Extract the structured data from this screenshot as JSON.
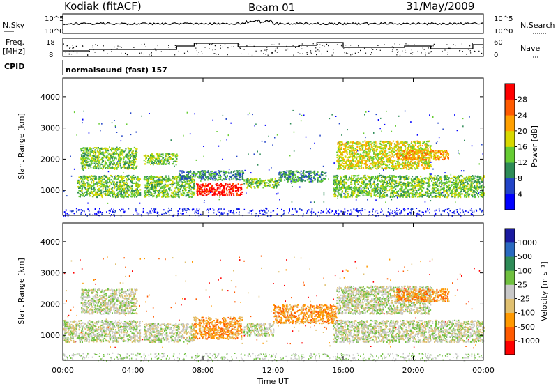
{
  "header": {
    "station": "Kodiak (fitACF)",
    "beam": "Beam 01",
    "date": "31/May/2009"
  },
  "noise_panel": {
    "left_label": "N.Sky",
    "right_label": "N.Search",
    "y_ticks_left": [
      "10^5",
      "10^0"
    ],
    "y_ticks_right": [
      "10^5",
      "10^0"
    ]
  },
  "freq_panel": {
    "left_label_line1": "Freq.",
    "left_label_line2": "[MHz]",
    "y_ticks_left": [
      "18",
      "8"
    ],
    "right_label": "Nave",
    "y_ticks_right": [
      "60",
      "0"
    ]
  },
  "cpid": {
    "label": "CPID",
    "text": "normalsound (fast) 157"
  },
  "x_axis": {
    "label": "Time UT",
    "ticks": [
      "00:00",
      "04:00",
      "08:00",
      "12:00",
      "16:00",
      "20:00",
      "00:00"
    ]
  },
  "chart_data": [
    {
      "type": "heatmap",
      "name": "power-panel",
      "ylabel": "Slant Range [km]",
      "yticks": [
        1000,
        2000,
        3000,
        4000
      ],
      "ylim": [
        200,
        4600
      ],
      "xlim_hours": [
        0,
        24
      ],
      "colorbar": {
        "label": "Power [dB]",
        "ticks": [
          "28",
          "24",
          "20",
          "16",
          "12",
          "8",
          "4"
        ],
        "colors": [
          "#0000ff",
          "#2244c8",
          "#2e8b57",
          "#66cc33",
          "#d8d800",
          "#ffa000",
          "#ff5a00",
          "#ff0000"
        ]
      },
      "regions": [
        {
          "t0": 0.8,
          "t1": 4.4,
          "r0": 800,
          "r1": 1500,
          "level": 3
        },
        {
          "t0": 1.0,
          "t1": 4.2,
          "r0": 1700,
          "r1": 2400,
          "level": 3
        },
        {
          "t0": 4.6,
          "t1": 7.5,
          "r0": 800,
          "r1": 1500,
          "level": 3
        },
        {
          "t0": 4.6,
          "t1": 6.5,
          "r0": 1850,
          "r1": 2200,
          "level": 3
        },
        {
          "t0": 6.6,
          "t1": 10.3,
          "r0": 1350,
          "r1": 1650,
          "level": 2
        },
        {
          "t0": 7.6,
          "t1": 10.2,
          "r0": 850,
          "r1": 1250,
          "level": 7
        },
        {
          "t0": 10.3,
          "t1": 12.3,
          "r0": 1100,
          "r1": 1400,
          "level": 3
        },
        {
          "t0": 12.3,
          "t1": 15.0,
          "r0": 1300,
          "r1": 1650,
          "level": 2
        },
        {
          "t0": 15.4,
          "t1": 24.0,
          "r0": 800,
          "r1": 1500,
          "level": 3
        },
        {
          "t0": 15.6,
          "t1": 21.0,
          "r0": 1700,
          "r1": 2600,
          "level": 4
        },
        {
          "t0": 19.0,
          "t1": 22.0,
          "r0": 2000,
          "r1": 2300,
          "level": 5
        }
      ]
    },
    {
      "type": "heatmap",
      "name": "velocity-panel",
      "ylabel": "Slant Range [km]",
      "yticks": [
        1000,
        2000,
        3000,
        4000
      ],
      "ylim": [
        200,
        4600
      ],
      "xlim_hours": [
        0,
        24
      ],
      "colorbar": {
        "label": "Velocity [m s⁻¹]",
        "ticks": [
          "1000",
          "500",
          "100",
          "25",
          "-25",
          "-100",
          "-500",
          "-1000"
        ],
        "colors": [
          "#ff0000",
          "#ff5a00",
          "#ff9900",
          "#e0c070",
          "#c8c8c8",
          "#70c040",
          "#2e8b57",
          "#2a6ac0",
          "#1a1aa0"
        ]
      },
      "regions": [
        {
          "t0": 0.0,
          "t1": 4.4,
          "r0": 800,
          "r1": 1500,
          "level": 4
        },
        {
          "t0": 1.0,
          "t1": 4.2,
          "r0": 1700,
          "r1": 2500,
          "level": 4
        },
        {
          "t0": 4.6,
          "t1": 7.5,
          "r0": 800,
          "r1": 1400,
          "level": 4
        },
        {
          "t0": 7.4,
          "t1": 10.2,
          "r0": 900,
          "r1": 1600,
          "level": 2
        },
        {
          "t0": 10.3,
          "t1": 12.0,
          "r0": 1000,
          "r1": 1400,
          "level": 4
        },
        {
          "t0": 12.0,
          "t1": 15.6,
          "r0": 1400,
          "r1": 2000,
          "level": 2
        },
        {
          "t0": 15.4,
          "t1": 24.0,
          "r0": 800,
          "r1": 1500,
          "level": 4
        },
        {
          "t0": 15.6,
          "t1": 21.0,
          "r0": 1700,
          "r1": 2600,
          "level": 4
        },
        {
          "t0": 19.0,
          "t1": 22.0,
          "r0": 2100,
          "r1": 2500,
          "level": 2
        }
      ]
    }
  ]
}
